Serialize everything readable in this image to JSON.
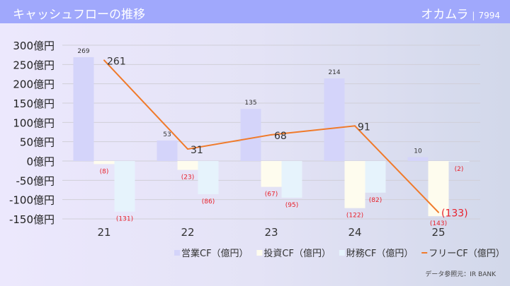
{
  "header": {
    "title": "キャッシュフローの推移",
    "company": "オカムラ",
    "separator": "|",
    "code": "7994"
  },
  "source": "データ参照元：IR BANK",
  "colors": {
    "operating": "#d4d4fa",
    "investing": "#fefcee",
    "financing": "#e6f3fc",
    "free": "#f07a2a",
    "negative_label": "#e8202a",
    "grid": "#d0cfd8"
  },
  "chart_data": {
    "type": "bar+line",
    "categories": [
      "21",
      "22",
      "23",
      "24",
      "25"
    ],
    "ylim": [
      -150,
      300
    ],
    "yticks": [
      300,
      250,
      200,
      150,
      100,
      50,
      0,
      -50,
      -100,
      -150
    ],
    "ytick_suffix": "億円",
    "grid": true,
    "legend_position": "bottom-right",
    "series": [
      {
        "name": "営業CF（億円）",
        "type": "bar",
        "values": [
          269,
          53,
          135,
          214,
          10
        ],
        "labels": [
          "269",
          "53",
          "135",
          "214",
          "10"
        ]
      },
      {
        "name": "投資CF（億円）",
        "type": "bar",
        "values": [
          -8,
          -23,
          -67,
          -122,
          -143
        ],
        "labels": [
          "(8)",
          "(23)",
          "(67)",
          "(122)",
          "(143)"
        ]
      },
      {
        "name": "財務CF（億円）",
        "type": "bar",
        "values": [
          -131,
          -86,
          -95,
          -82,
          -2
        ],
        "labels": [
          "(131)",
          "(86)",
          "(95)",
          "(82)",
          "(2)"
        ]
      },
      {
        "name": "フリーCF（億円）",
        "type": "line",
        "values": [
          261,
          31,
          68,
          91,
          -133
        ],
        "labels": [
          "261",
          "31",
          "68",
          "91",
          "(133)"
        ]
      }
    ]
  }
}
